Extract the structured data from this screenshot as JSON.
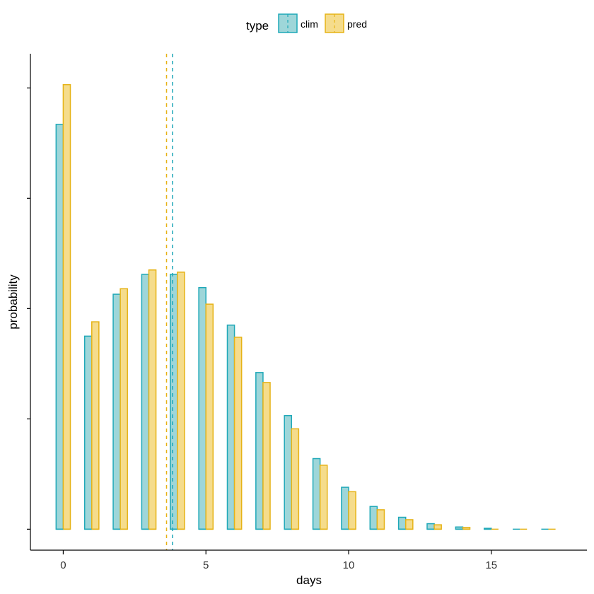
{
  "chart_data": {
    "type": "bar",
    "xlabel": "days",
    "ylabel": "probability",
    "x": [
      0,
      1,
      2,
      3,
      4,
      5,
      6,
      7,
      8,
      9,
      10,
      11,
      12,
      13,
      14,
      15,
      16,
      17
    ],
    "xlim": [
      -1.15,
      18.35
    ],
    "xticks": [
      0,
      5,
      10,
      15
    ],
    "xtick_labels": [
      "0",
      "5",
      "10",
      "15"
    ],
    "ylim": [
      -0.0095,
      0.2155
    ],
    "yticks": [
      0,
      0.05,
      0.1,
      0.15,
      0.2
    ],
    "legend": {
      "title": "type",
      "position": "top"
    },
    "series": [
      {
        "name": "clim",
        "fill": "#9ed6d9",
        "stroke": "#1fa8b8",
        "values": [
          0.1835,
          0.0875,
          0.1065,
          0.1155,
          0.1155,
          0.1095,
          0.0925,
          0.071,
          0.0515,
          0.032,
          0.019,
          0.0103,
          0.0054,
          0.0025,
          0.001,
          0.0004,
          0.0001,
          3e-05
        ],
        "mean": 3.83
      },
      {
        "name": "pred",
        "fill": "#f5dc8c",
        "stroke": "#e6b317",
        "values": [
          0.2015,
          0.094,
          0.109,
          0.1175,
          0.1165,
          0.102,
          0.087,
          0.0665,
          0.0455,
          0.029,
          0.017,
          0.0088,
          0.0043,
          0.002,
          0.0008,
          0.0003,
          0.0001,
          2e-05
        ],
        "mean": 3.62
      }
    ]
  }
}
